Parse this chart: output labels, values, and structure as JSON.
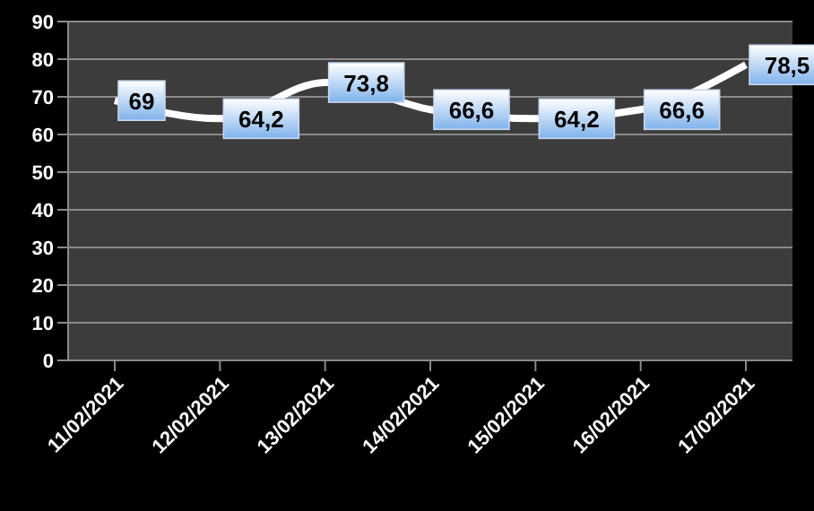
{
  "chart_data": {
    "type": "line",
    "categories": [
      "11/02/2021",
      "12/02/2021",
      "13/02/2021",
      "14/02/2021",
      "15/02/2021",
      "16/02/2021",
      "17/02/2021"
    ],
    "series": [
      {
        "color": "#ffffff",
        "values": [
          69,
          64.2,
          73.8,
          66.6,
          64.2,
          66.6,
          78.5
        ],
        "value_labels": [
          "69",
          "64,2",
          "73,8",
          "66,6",
          "64,2",
          "66,6",
          "78,5"
        ]
      }
    ],
    "ylim": [
      0,
      90
    ],
    "yticks": [
      0,
      10,
      20,
      30,
      40,
      50,
      60,
      70,
      80,
      90
    ],
    "grid": "y",
    "legend": false,
    "marker": "none",
    "line_style": "solid"
  }
}
